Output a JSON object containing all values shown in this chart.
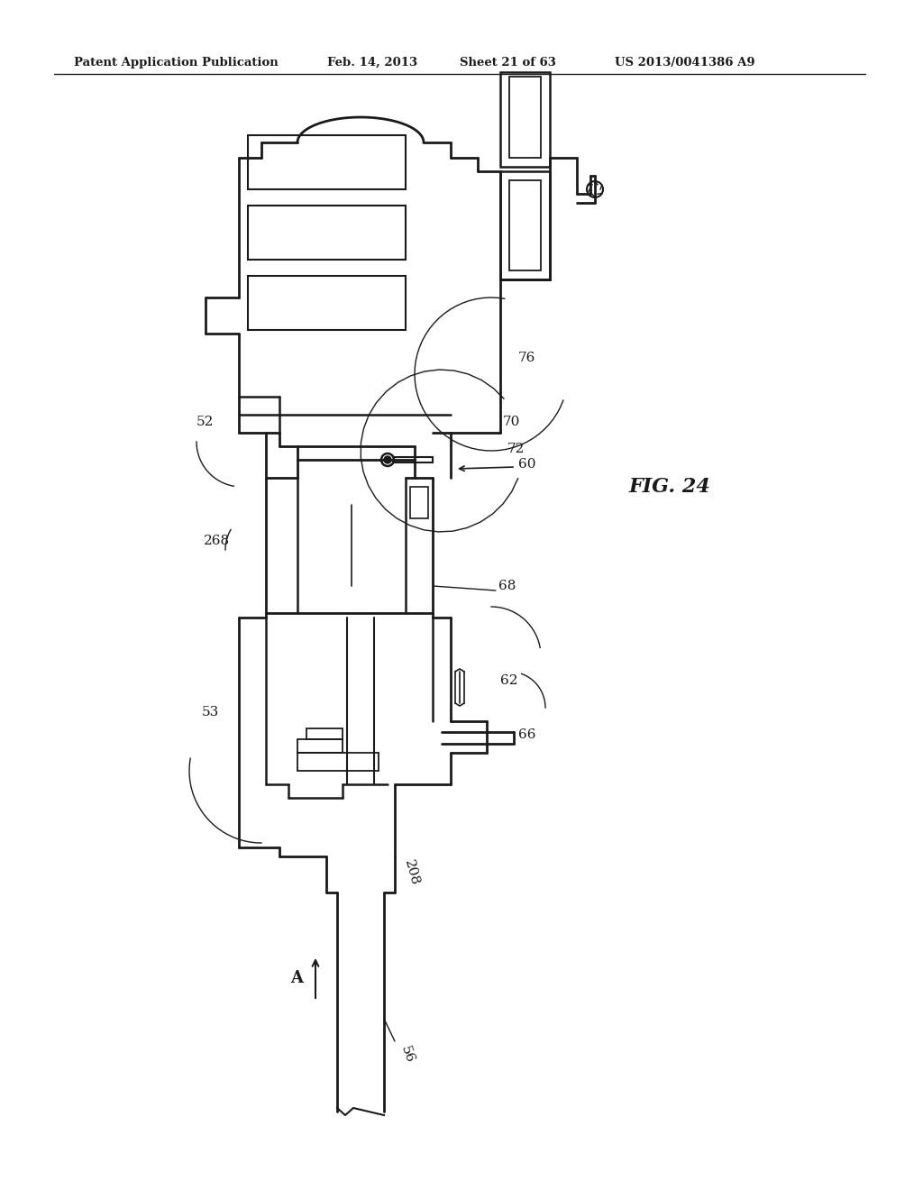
{
  "bg_color": "#ffffff",
  "line_color": "#1a1a1a",
  "header_text": "Patent Application Publication",
  "header_date": "Feb. 14, 2013",
  "header_sheet": "Sheet 21 of 63",
  "header_patent": "US 2013/0041386 A9",
  "fig_label": "FIG. 24"
}
